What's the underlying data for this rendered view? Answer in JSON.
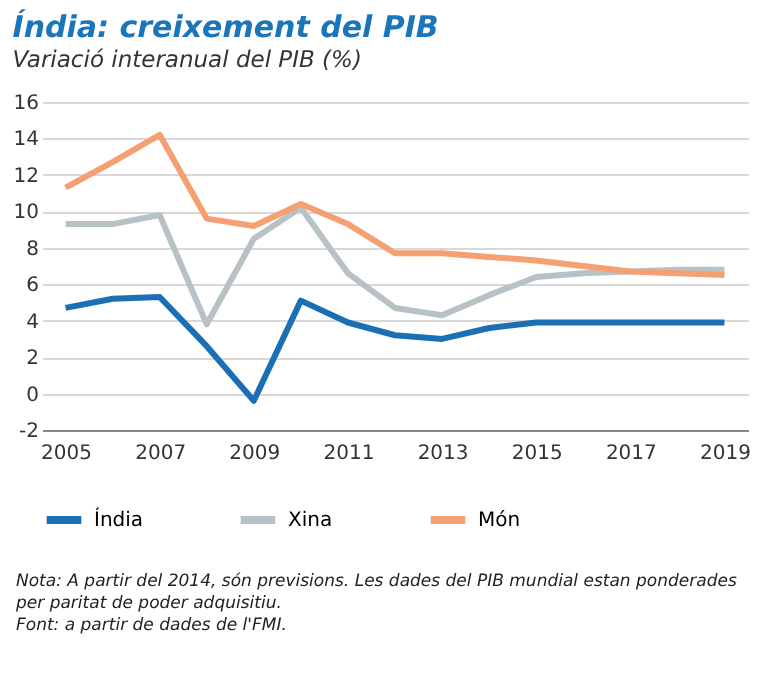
{
  "chart_data": {
    "type": "line",
    "title": "Índia: creixement del PIB",
    "subtitle": "Variació interanual del PIB (%)",
    "categories": [
      "2005",
      null,
      "2007",
      null,
      "2009",
      null,
      "2011",
      null,
      "2013",
      null,
      "2015",
      null,
      "2017",
      null,
      "2019"
    ],
    "series": [
      {
        "name": "Índia",
        "color": "#1a6fb5",
        "values": [
          4.7,
          5.2,
          5.3,
          2.6,
          -0.4,
          5.1,
          3.9,
          3.2,
          3.0,
          3.6,
          3.9,
          3.9,
          3.9,
          3.9,
          3.9
        ]
      },
      {
        "name": "Xina",
        "color": "#b8c2c6",
        "values": [
          9.3,
          9.3,
          9.8,
          3.8,
          8.5,
          10.2,
          6.6,
          4.7,
          4.3,
          5.4,
          6.4,
          6.6,
          6.7,
          6.8,
          6.8
        ]
      },
      {
        "name": "Món",
        "color": "#f4a072",
        "values": [
          11.3,
          12.7,
          14.2,
          9.6,
          9.2,
          10.4,
          9.3,
          7.7,
          7.7,
          7.5,
          7.3,
          7.0,
          6.7,
          6.6,
          6.5
        ]
      }
    ],
    "ylim": [
      -2,
      16
    ],
    "yticks": [
      -2,
      0,
      2,
      4,
      6,
      8,
      10,
      12,
      14,
      16
    ],
    "grid": "y",
    "legend": "bottom",
    "line_style": "solid",
    "marker": "none",
    "annotations": [
      "Nota: A partir del 2014, són previsions. Les dades del PIB mundial estan ponderades per paritat de poder adquisitiu.",
      "Font: a partir de dades de l'FMI."
    ]
  }
}
